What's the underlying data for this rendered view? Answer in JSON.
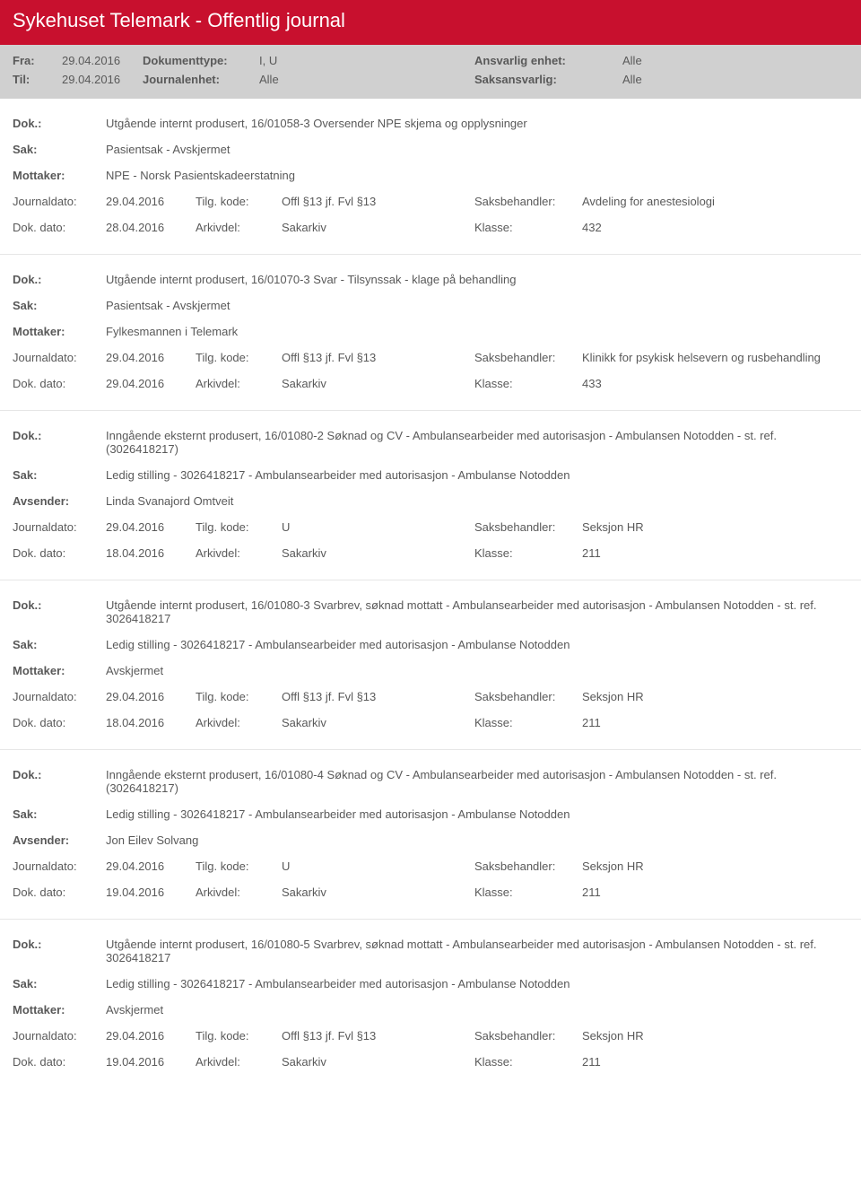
{
  "header": {
    "title": "Sykehuset Telemark - Offentlig journal"
  },
  "filters": {
    "fra_label": "Fra:",
    "fra_value": "29.04.2016",
    "doktype_label": "Dokumenttype:",
    "doktype_value": "I, U",
    "ansvarlig_label": "Ansvarlig enhet:",
    "ansvarlig_value": "Alle",
    "til_label": "Til:",
    "til_value": "29.04.2016",
    "journalenhet_label": "Journalenhet:",
    "journalenhet_value": "Alle",
    "saksansvarlig_label": "Saksansvarlig:",
    "saksansvarlig_value": "Alle"
  },
  "labels": {
    "dok": "Dok.:",
    "sak": "Sak:",
    "mottaker": "Mottaker:",
    "avsender": "Avsender:",
    "journaldato": "Journaldato:",
    "dokdato": "Dok. dato:",
    "tilgkode": "Tilg. kode:",
    "arkivdel": "Arkivdel:",
    "saksbehandler": "Saksbehandler:",
    "klasse": "Klasse:"
  },
  "entries": [
    {
      "dok": "Utgående internt produsert, 16/01058-3 Oversender NPE skjema og opplysninger",
      "sak": "Pasientsak - Avskjermet",
      "party_label": "Mottaker:",
      "party": "NPE - Norsk Pasientskadeerstatning",
      "journaldato": "29.04.2016",
      "tilgkode": "Offl §13 jf. Fvl §13",
      "saksbehandler": "Avdeling for anestesiologi",
      "dokdato": "28.04.2016",
      "arkivdel": "Sakarkiv",
      "klasse": "432"
    },
    {
      "dok": "Utgående internt produsert, 16/01070-3 Svar - Tilsynssak - klage på behandling",
      "sak": "Pasientsak - Avskjermet",
      "party_label": "Mottaker:",
      "party": "Fylkesmannen i Telemark",
      "journaldato": "29.04.2016",
      "tilgkode": "Offl §13 jf. Fvl §13",
      "saksbehandler": "Klinikk for psykisk helsevern og rusbehandling",
      "dokdato": "29.04.2016",
      "arkivdel": "Sakarkiv",
      "klasse": "433"
    },
    {
      "dok": "Inngående eksternt produsert, 16/01080-2 Søknad og CV - Ambulansearbeider med autorisasjon - Ambulansen Notodden - st. ref. (3026418217)",
      "sak": "Ledig stilling - 3026418217 - Ambulansearbeider med autorisasjon - Ambulanse Notodden",
      "party_label": "Avsender:",
      "party": "Linda Svanajord Omtveit",
      "journaldato": "29.04.2016",
      "tilgkode": "U",
      "saksbehandler": "Seksjon HR",
      "dokdato": "18.04.2016",
      "arkivdel": "Sakarkiv",
      "klasse": "211"
    },
    {
      "dok": "Utgående internt produsert, 16/01080-3 Svarbrev, søknad mottatt - Ambulansearbeider med autorisasjon - Ambulansen Notodden  - st. ref. 3026418217",
      "sak": "Ledig stilling - 3026418217 - Ambulansearbeider med autorisasjon - Ambulanse Notodden",
      "party_label": "Mottaker:",
      "party": "Avskjermet",
      "journaldato": "29.04.2016",
      "tilgkode": "Offl §13 jf. Fvl §13",
      "saksbehandler": "Seksjon HR",
      "dokdato": "18.04.2016",
      "arkivdel": "Sakarkiv",
      "klasse": "211"
    },
    {
      "dok": "Inngående eksternt produsert, 16/01080-4 Søknad og CV - Ambulansearbeider med autorisasjon - Ambulansen Notodden - st. ref. (3026418217)",
      "sak": "Ledig stilling - 3026418217 - Ambulansearbeider med autorisasjon - Ambulanse Notodden",
      "party_label": "Avsender:",
      "party": "Jon Eilev Solvang",
      "journaldato": "29.04.2016",
      "tilgkode": "U",
      "saksbehandler": "Seksjon HR",
      "dokdato": "19.04.2016",
      "arkivdel": "Sakarkiv",
      "klasse": "211"
    },
    {
      "dok": "Utgående internt produsert, 16/01080-5 Svarbrev, søknad mottatt - Ambulansearbeider med autorisasjon - Ambulansen Notodden  - st. ref. 3026418217",
      "sak": "Ledig stilling - 3026418217 - Ambulansearbeider med autorisasjon - Ambulanse Notodden",
      "party_label": "Mottaker:",
      "party": "Avskjermet",
      "journaldato": "29.04.2016",
      "tilgkode": "Offl §13 jf. Fvl §13",
      "saksbehandler": "Seksjon HR",
      "dokdato": "19.04.2016",
      "arkivdel": "Sakarkiv",
      "klasse": "211"
    }
  ]
}
